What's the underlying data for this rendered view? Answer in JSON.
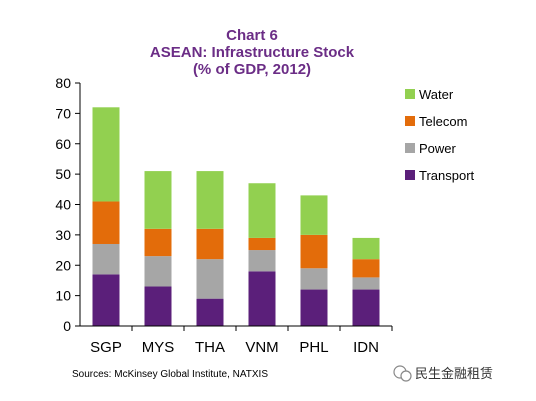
{
  "chart_data": {
    "type": "bar",
    "stacked": true,
    "title": "Chart 6",
    "subtitle_lines": [
      "ASEAN: Infrastructure Stock",
      "(% of GDP, 2012)"
    ],
    "categories": [
      "SGP",
      "MYS",
      "THA",
      "VNM",
      "PHL",
      "IDN"
    ],
    "series": [
      {
        "name": "Transport",
        "color": "#5b1f7a",
        "values": [
          17,
          13,
          9,
          18,
          12,
          12
        ]
      },
      {
        "name": "Power",
        "color": "#a6a6a6",
        "values": [
          10,
          10,
          13,
          7,
          7,
          4
        ]
      },
      {
        "name": "Telecom",
        "color": "#e36c0a",
        "values": [
          14,
          9,
          10,
          4,
          11,
          6
        ]
      },
      {
        "name": "Water",
        "color": "#92d050",
        "values": [
          31,
          19,
          19,
          18,
          13,
          7
        ]
      }
    ],
    "legend_order": [
      "Water",
      "Telecom",
      "Power",
      "Transport"
    ],
    "legend_position": "right",
    "ylim": [
      0,
      80
    ],
    "yticks": [
      0,
      10,
      20,
      30,
      40,
      50,
      60,
      70,
      80
    ],
    "grid": false
  },
  "source_text": "Sources: McKinsey Global Institute, NATXIS",
  "watermark": {
    "icon": "wechat-icon",
    "text": "民生金融租赁"
  }
}
